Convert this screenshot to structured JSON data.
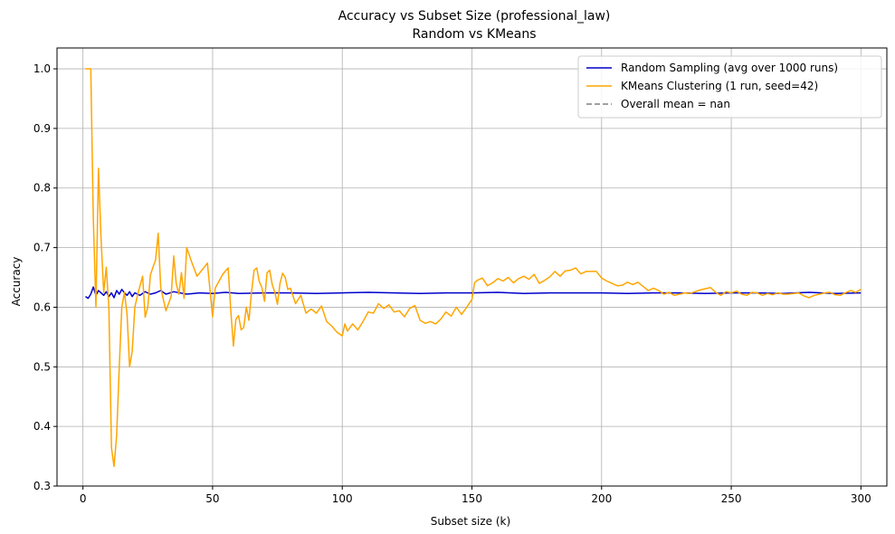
{
  "chart_data": {
    "type": "line",
    "title": "Accuracy vs Subset Size (professional_law)",
    "subtitle": "Random vs KMeans",
    "xlabel": "Subset size (k)",
    "ylabel": "Accuracy",
    "xlim": [
      -10,
      310
    ],
    "ylim": [
      0.3,
      1.035
    ],
    "x_ticks": [
      0,
      50,
      100,
      150,
      200,
      250,
      300
    ],
    "y_ticks": [
      0.3,
      0.4,
      0.5,
      0.6,
      0.7,
      0.8,
      0.9,
      1.0
    ],
    "x_tick_labels": [
      "0",
      "50",
      "100",
      "150",
      "200",
      "250",
      "300"
    ],
    "y_tick_labels": [
      "0.3",
      "0.4",
      "0.5",
      "0.6",
      "0.7",
      "0.8",
      "0.9",
      "1.0"
    ],
    "grid": true,
    "legend_position": "top-right",
    "series": [
      {
        "name": "Random Sampling (avg over 1000 runs)",
        "color": "#0000cc",
        "style": "solid",
        "points": [
          [
            1,
            0.618
          ],
          [
            2,
            0.615
          ],
          [
            3,
            0.622
          ],
          [
            4,
            0.634
          ],
          [
            5,
            0.62
          ],
          [
            6,
            0.628
          ],
          [
            7,
            0.624
          ],
          [
            8,
            0.62
          ],
          [
            9,
            0.626
          ],
          [
            10,
            0.618
          ],
          [
            11,
            0.624
          ],
          [
            12,
            0.616
          ],
          [
            13,
            0.628
          ],
          [
            14,
            0.622
          ],
          [
            15,
            0.63
          ],
          [
            16,
            0.624
          ],
          [
            17,
            0.62
          ],
          [
            18,
            0.626
          ],
          [
            19,
            0.618
          ],
          [
            20,
            0.624
          ],
          [
            22,
            0.62
          ],
          [
            24,
            0.626
          ],
          [
            26,
            0.622
          ],
          [
            28,
            0.624
          ],
          [
            30,
            0.628
          ],
          [
            32,
            0.622
          ],
          [
            35,
            0.626
          ],
          [
            40,
            0.622
          ],
          [
            45,
            0.624
          ],
          [
            50,
            0.623
          ],
          [
            55,
            0.625
          ],
          [
            60,
            0.623
          ],
          [
            70,
            0.624
          ],
          [
            80,
            0.624
          ],
          [
            90,
            0.623
          ],
          [
            100,
            0.624
          ],
          [
            110,
            0.625
          ],
          [
            120,
            0.624
          ],
          [
            130,
            0.623
          ],
          [
            140,
            0.624
          ],
          [
            150,
            0.624
          ],
          [
            160,
            0.625
          ],
          [
            170,
            0.623
          ],
          [
            180,
            0.624
          ],
          [
            190,
            0.624
          ],
          [
            200,
            0.624
          ],
          [
            210,
            0.623
          ],
          [
            220,
            0.624
          ],
          [
            230,
            0.624
          ],
          [
            240,
            0.623
          ],
          [
            250,
            0.624
          ],
          [
            260,
            0.624
          ],
          [
            270,
            0.623
          ],
          [
            280,
            0.625
          ],
          [
            290,
            0.623
          ],
          [
            300,
            0.624
          ]
        ]
      },
      {
        "name": "KMeans Clustering (1 run, seed=42)",
        "color": "#ffa500",
        "style": "solid",
        "points": [
          [
            1,
            1.0
          ],
          [
            2,
            1.0
          ],
          [
            3,
            1.0
          ],
          [
            4,
            0.75
          ],
          [
            5,
            0.6
          ],
          [
            6,
            0.833
          ],
          [
            7,
            0.714
          ],
          [
            8,
            0.625
          ],
          [
            9,
            0.667
          ],
          [
            10,
            0.6
          ],
          [
            11,
            0.364
          ],
          [
            12,
            0.333
          ],
          [
            13,
            0.385
          ],
          [
            14,
            0.5
          ],
          [
            15,
            0.6
          ],
          [
            16,
            0.625
          ],
          [
            17,
            0.588
          ],
          [
            18,
            0.5
          ],
          [
            19,
            0.526
          ],
          [
            20,
            0.6
          ],
          [
            21,
            0.619
          ],
          [
            22,
            0.636
          ],
          [
            23,
            0.652
          ],
          [
            24,
            0.583
          ],
          [
            25,
            0.6
          ],
          [
            26,
            0.654
          ],
          [
            27,
            0.667
          ],
          [
            28,
            0.679
          ],
          [
            29,
            0.724
          ],
          [
            30,
            0.633
          ],
          [
            31,
            0.613
          ],
          [
            32,
            0.594
          ],
          [
            33,
            0.606
          ],
          [
            34,
            0.618
          ],
          [
            35,
            0.686
          ],
          [
            36,
            0.639
          ],
          [
            37,
            0.622
          ],
          [
            38,
            0.658
          ],
          [
            39,
            0.615
          ],
          [
            40,
            0.7
          ],
          [
            42,
            0.675
          ],
          [
            44,
            0.652
          ],
          [
            46,
            0.663
          ],
          [
            48,
            0.674
          ],
          [
            50,
            0.584
          ],
          [
            51,
            0.632
          ],
          [
            54,
            0.656
          ],
          [
            56,
            0.666
          ],
          [
            57,
            0.595
          ],
          [
            58,
            0.535
          ],
          [
            59,
            0.58
          ],
          [
            60,
            0.586
          ],
          [
            61,
            0.562
          ],
          [
            62,
            0.566
          ],
          [
            63,
            0.6
          ],
          [
            64,
            0.578
          ],
          [
            65,
            0.625
          ],
          [
            66,
            0.662
          ],
          [
            67,
            0.666
          ],
          [
            68,
            0.643
          ],
          [
            69,
            0.633
          ],
          [
            70,
            0.61
          ],
          [
            71,
            0.658
          ],
          [
            72,
            0.662
          ],
          [
            73,
            0.638
          ],
          [
            74,
            0.625
          ],
          [
            75,
            0.605
          ],
          [
            76,
            0.64
          ],
          [
            77,
            0.657
          ],
          [
            78,
            0.65
          ],
          [
            79,
            0.63
          ],
          [
            80,
            0.632
          ],
          [
            82,
            0.606
          ],
          [
            84,
            0.62
          ],
          [
            86,
            0.59
          ],
          [
            88,
            0.597
          ],
          [
            90,
            0.59
          ],
          [
            92,
            0.602
          ],
          [
            94,
            0.576
          ],
          [
            96,
            0.568
          ],
          [
            98,
            0.558
          ],
          [
            100,
            0.552
          ],
          [
            101,
            0.572
          ],
          [
            102,
            0.56
          ],
          [
            104,
            0.572
          ],
          [
            106,
            0.562
          ],
          [
            108,
            0.576
          ],
          [
            110,
            0.592
          ],
          [
            112,
            0.59
          ],
          [
            114,
            0.606
          ],
          [
            116,
            0.598
          ],
          [
            118,
            0.604
          ],
          [
            120,
            0.592
          ],
          [
            122,
            0.594
          ],
          [
            124,
            0.584
          ],
          [
            126,
            0.598
          ],
          [
            128,
            0.603
          ],
          [
            130,
            0.578
          ],
          [
            132,
            0.573
          ],
          [
            134,
            0.576
          ],
          [
            136,
            0.572
          ],
          [
            138,
            0.58
          ],
          [
            140,
            0.592
          ],
          [
            142,
            0.585
          ],
          [
            144,
            0.6
          ],
          [
            146,
            0.588
          ],
          [
            148,
            0.6
          ],
          [
            150,
            0.613
          ],
          [
            151,
            0.641
          ],
          [
            152,
            0.645
          ],
          [
            154,
            0.649
          ],
          [
            156,
            0.636
          ],
          [
            158,
            0.641
          ],
          [
            160,
            0.648
          ],
          [
            162,
            0.644
          ],
          [
            164,
            0.65
          ],
          [
            166,
            0.641
          ],
          [
            168,
            0.648
          ],
          [
            170,
            0.652
          ],
          [
            172,
            0.647
          ],
          [
            174,
            0.655
          ],
          [
            176,
            0.64
          ],
          [
            178,
            0.645
          ],
          [
            180,
            0.651
          ],
          [
            182,
            0.66
          ],
          [
            184,
            0.652
          ],
          [
            186,
            0.661
          ],
          [
            188,
            0.662
          ],
          [
            190,
            0.666
          ],
          [
            192,
            0.656
          ],
          [
            194,
            0.66
          ],
          [
            196,
            0.66
          ],
          [
            198,
            0.66
          ],
          [
            200,
            0.649
          ],
          [
            202,
            0.644
          ],
          [
            204,
            0.64
          ],
          [
            206,
            0.636
          ],
          [
            208,
            0.637
          ],
          [
            210,
            0.642
          ],
          [
            212,
            0.638
          ],
          [
            214,
            0.642
          ],
          [
            216,
            0.635
          ],
          [
            218,
            0.628
          ],
          [
            220,
            0.632
          ],
          [
            222,
            0.628
          ],
          [
            224,
            0.622
          ],
          [
            226,
            0.625
          ],
          [
            228,
            0.62
          ],
          [
            230,
            0.622
          ],
          [
            232,
            0.624
          ],
          [
            234,
            0.623
          ],
          [
            236,
            0.626
          ],
          [
            238,
            0.629
          ],
          [
            240,
            0.631
          ],
          [
            242,
            0.633
          ],
          [
            244,
            0.625
          ],
          [
            246,
            0.62
          ],
          [
            248,
            0.626
          ],
          [
            250,
            0.624
          ],
          [
            252,
            0.627
          ],
          [
            254,
            0.622
          ],
          [
            256,
            0.62
          ],
          [
            258,
            0.625
          ],
          [
            260,
            0.624
          ],
          [
            262,
            0.62
          ],
          [
            264,
            0.623
          ],
          [
            266,
            0.621
          ],
          [
            268,
            0.624
          ],
          [
            270,
            0.622
          ],
          [
            272,
            0.622
          ],
          [
            274,
            0.623
          ],
          [
            276,
            0.624
          ],
          [
            278,
            0.619
          ],
          [
            280,
            0.616
          ],
          [
            282,
            0.62
          ],
          [
            284,
            0.622
          ],
          [
            286,
            0.624
          ],
          [
            288,
            0.625
          ],
          [
            290,
            0.621
          ],
          [
            292,
            0.62
          ],
          [
            294,
            0.624
          ],
          [
            296,
            0.628
          ],
          [
            298,
            0.625
          ],
          [
            300,
            0.63
          ]
        ]
      },
      {
        "name": "Overall mean = nan",
        "color": "#808080",
        "style": "dashed",
        "points": []
      }
    ]
  }
}
